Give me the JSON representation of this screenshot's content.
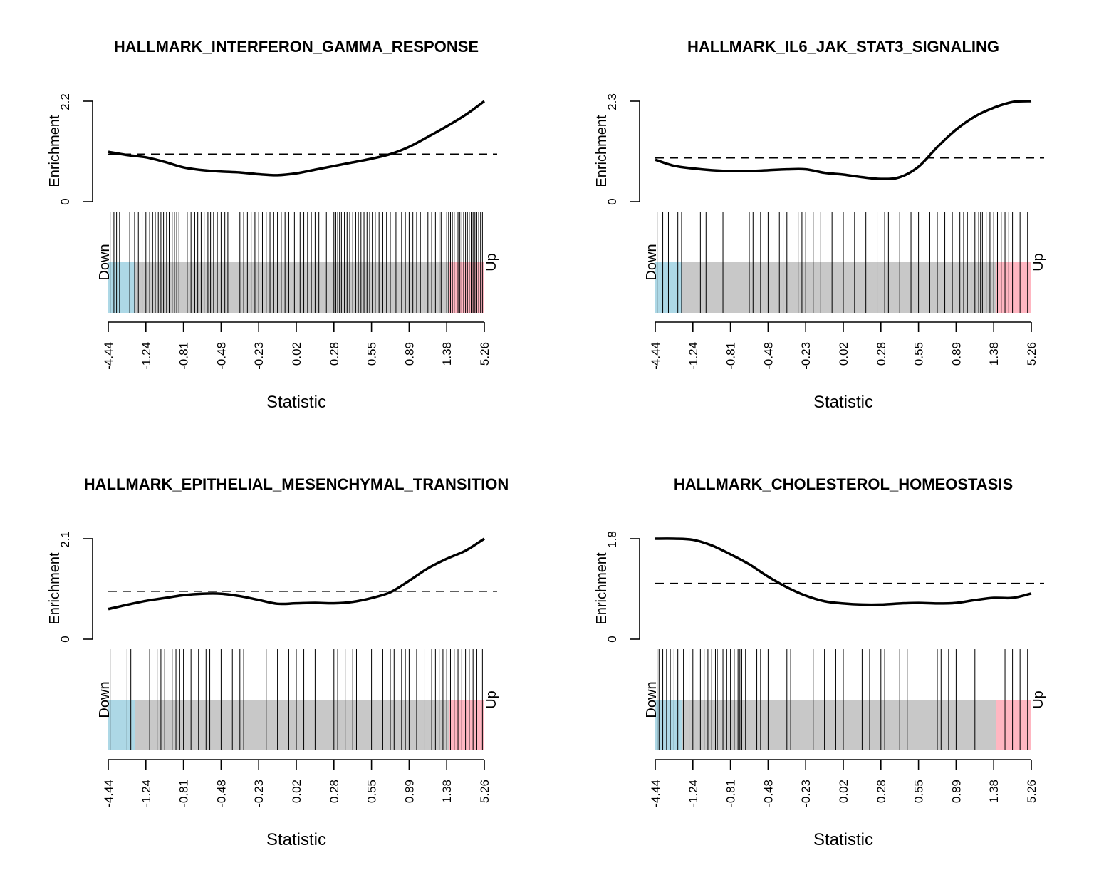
{
  "chart_data": [
    {
      "type": "line",
      "title": "HALLMARK_INTERFERON_GAMMA_RESPONSE",
      "ylabel": "Enrichment",
      "xlabel": "Statistic",
      "y_ticks": [
        "0",
        "2.2"
      ],
      "ylim": [
        0,
        2.2
      ],
      "reference_line": 1.04,
      "x_tick_labels": [
        "-4.44",
        "-1.24",
        "-0.81",
        "-0.48",
        "-0.23",
        "0.02",
        "0.28",
        "0.55",
        "0.89",
        "1.38",
        "5.26"
      ],
      "down_label": "Down",
      "up_label": "Up",
      "colors": {
        "down": "#add8e6",
        "middle": "#c8c8c8",
        "up": "#ffb6c1"
      },
      "x": [
        0,
        0.05,
        0.1,
        0.15,
        0.2,
        0.25,
        0.3,
        0.35,
        0.4,
        0.45,
        0.5,
        0.55,
        0.6,
        0.65,
        0.7,
        0.75,
        0.8,
        0.85,
        0.9,
        0.95,
        1
      ],
      "enrichment": [
        1.09,
        1.02,
        0.97,
        0.87,
        0.75,
        0.69,
        0.66,
        0.64,
        0.6,
        0.58,
        0.62,
        0.7,
        0.78,
        0.86,
        0.94,
        1.04,
        1.2,
        1.42,
        1.65,
        1.9,
        2.2
      ],
      "barcode_ranks": [
        0.005,
        0.015,
        0.022,
        0.03,
        0.057,
        0.07,
        0.08,
        0.09,
        0.1,
        0.11,
        0.118,
        0.125,
        0.133,
        0.14,
        0.147,
        0.155,
        0.162,
        0.17,
        0.176,
        0.182,
        0.188,
        0.21,
        0.22,
        0.23,
        0.238,
        0.247,
        0.255,
        0.265,
        0.272,
        0.28,
        0.29,
        0.3,
        0.31,
        0.318,
        0.35,
        0.36,
        0.37,
        0.38,
        0.39,
        0.4,
        0.41,
        0.42,
        0.43,
        0.44,
        0.45,
        0.46,
        0.47,
        0.48,
        0.495,
        0.51,
        0.52,
        0.53,
        0.54,
        0.55,
        0.56,
        0.58,
        0.6,
        0.605,
        0.61,
        0.615,
        0.62,
        0.628,
        0.635,
        0.642,
        0.65,
        0.658,
        0.665,
        0.672,
        0.68,
        0.688,
        0.695,
        0.702,
        0.71,
        0.72,
        0.73,
        0.74,
        0.75,
        0.765,
        0.78,
        0.79,
        0.8,
        0.81,
        0.82,
        0.83,
        0.84,
        0.85,
        0.86,
        0.87,
        0.88,
        0.885,
        0.9,
        0.905,
        0.91,
        0.915,
        0.92,
        0.93,
        0.935,
        0.94,
        0.945,
        0.95,
        0.955,
        0.96,
        0.965,
        0.97,
        0.975,
        0.98,
        0.985,
        0.99,
        0.995
      ]
    },
    {
      "type": "line",
      "title": "HALLMARK_IL6_JAK_STAT3_SIGNALING",
      "ylabel": "Enrichment",
      "xlabel": "Statistic",
      "y_ticks": [
        "0",
        "2.3"
      ],
      "ylim": [
        0,
        2.3
      ],
      "reference_line": 1.0,
      "x_tick_labels": [
        "-4.44",
        "-1.24",
        "-0.81",
        "-0.48",
        "-0.23",
        "0.02",
        "0.28",
        "0.55",
        "0.89",
        "1.38",
        "5.26"
      ],
      "down_label": "Down",
      "up_label": "Up",
      "colors": {
        "down": "#add8e6",
        "middle": "#c8c8c8",
        "up": "#ffb6c1"
      },
      "x": [
        0,
        0.05,
        0.1,
        0.15,
        0.2,
        0.25,
        0.3,
        0.35,
        0.4,
        0.45,
        0.5,
        0.55,
        0.6,
        0.65,
        0.7,
        0.75,
        0.8,
        0.85,
        0.9,
        0.95,
        1
      ],
      "enrichment": [
        0.96,
        0.82,
        0.76,
        0.72,
        0.7,
        0.7,
        0.72,
        0.74,
        0.74,
        0.66,
        0.62,
        0.56,
        0.52,
        0.56,
        0.8,
        1.25,
        1.65,
        1.95,
        2.15,
        2.28,
        2.3
      ],
      "barcode_ranks": [
        0.005,
        0.02,
        0.035,
        0.06,
        0.07,
        0.12,
        0.135,
        0.18,
        0.25,
        0.26,
        0.28,
        0.3,
        0.33,
        0.34,
        0.35,
        0.38,
        0.39,
        0.4,
        0.42,
        0.44,
        0.47,
        0.5,
        0.53,
        0.56,
        0.59,
        0.61,
        0.62,
        0.65,
        0.68,
        0.7,
        0.73,
        0.75,
        0.77,
        0.79,
        0.81,
        0.82,
        0.83,
        0.84,
        0.85,
        0.86,
        0.865,
        0.87,
        0.88,
        0.89,
        0.9,
        0.91,
        0.92,
        0.93,
        0.94,
        0.95,
        0.97,
        0.99
      ]
    },
    {
      "type": "line",
      "title": "HALLMARK_EPITHELIAL_MESENCHYMAL_TRANSITION",
      "ylabel": "Enrichment",
      "xlabel": "Statistic",
      "y_ticks": [
        "0",
        "2.1"
      ],
      "ylim": [
        0,
        2.1
      ],
      "reference_line": 1.0,
      "x_tick_labels": [
        "-4.44",
        "-1.24",
        "-0.81",
        "-0.48",
        "-0.23",
        "0.02",
        "0.28",
        "0.55",
        "0.89",
        "1.38",
        "5.26"
      ],
      "down_label": "Down",
      "up_label": "Up",
      "colors": {
        "down": "#add8e6",
        "middle": "#c8c8c8",
        "up": "#ffb6c1"
      },
      "x": [
        0,
        0.05,
        0.1,
        0.15,
        0.2,
        0.25,
        0.3,
        0.35,
        0.4,
        0.45,
        0.5,
        0.55,
        0.6,
        0.65,
        0.7,
        0.75,
        0.8,
        0.85,
        0.9,
        0.95,
        1
      ],
      "enrichment": [
        0.63,
        0.72,
        0.8,
        0.86,
        0.92,
        0.95,
        0.95,
        0.9,
        0.82,
        0.74,
        0.75,
        0.76,
        0.75,
        0.78,
        0.86,
        0.98,
        1.22,
        1.48,
        1.68,
        1.85,
        2.1
      ],
      "barcode_ranks": [
        0.005,
        0.05,
        0.06,
        0.11,
        0.13,
        0.14,
        0.15,
        0.17,
        0.18,
        0.19,
        0.2,
        0.22,
        0.24,
        0.26,
        0.27,
        0.3,
        0.33,
        0.35,
        0.36,
        0.42,
        0.45,
        0.48,
        0.5,
        0.52,
        0.55,
        0.6,
        0.61,
        0.63,
        0.65,
        0.66,
        0.7,
        0.73,
        0.75,
        0.76,
        0.78,
        0.79,
        0.8,
        0.82,
        0.84,
        0.86,
        0.87,
        0.88,
        0.89,
        0.9,
        0.91,
        0.92,
        0.93,
        0.94,
        0.95,
        0.96,
        0.97,
        0.98,
        0.995
      ]
    },
    {
      "type": "line",
      "title": "HALLMARK_CHOLESTEROL_HOMEOSTASIS",
      "ylabel": "Enrichment",
      "xlabel": "Statistic",
      "y_ticks": [
        "0",
        "1.8"
      ],
      "ylim": [
        0,
        1.8
      ],
      "reference_line": 1.0,
      "x_tick_labels": [
        "-4.44",
        "-1.24",
        "-0.81",
        "-0.48",
        "-0.23",
        "0.02",
        "0.28",
        "0.55",
        "0.89",
        "1.38",
        "5.26"
      ],
      "down_label": "Down",
      "up_label": "Up",
      "colors": {
        "down": "#add8e6",
        "middle": "#c8c8c8",
        "up": "#ffb6c1"
      },
      "x": [
        0,
        0.05,
        0.1,
        0.15,
        0.2,
        0.25,
        0.3,
        0.35,
        0.4,
        0.45,
        0.5,
        0.55,
        0.6,
        0.65,
        0.7,
        0.75,
        0.8,
        0.85,
        0.9,
        0.95,
        1
      ],
      "enrichment": [
        1.8,
        1.8,
        1.78,
        1.68,
        1.52,
        1.34,
        1.12,
        0.93,
        0.78,
        0.68,
        0.64,
        0.62,
        0.62,
        0.64,
        0.65,
        0.64,
        0.65,
        0.7,
        0.74,
        0.74,
        0.82
      ],
      "barcode_ranks": [
        0.005,
        0.01,
        0.02,
        0.03,
        0.04,
        0.05,
        0.06,
        0.075,
        0.09,
        0.1,
        0.12,
        0.13,
        0.14,
        0.15,
        0.16,
        0.165,
        0.18,
        0.19,
        0.2,
        0.21,
        0.22,
        0.225,
        0.23,
        0.24,
        0.27,
        0.28,
        0.3,
        0.35,
        0.36,
        0.42,
        0.45,
        0.48,
        0.5,
        0.55,
        0.57,
        0.6,
        0.61,
        0.65,
        0.67,
        0.75,
        0.76,
        0.78,
        0.8,
        0.85,
        0.93,
        0.95,
        0.97,
        0.99
      ]
    }
  ]
}
